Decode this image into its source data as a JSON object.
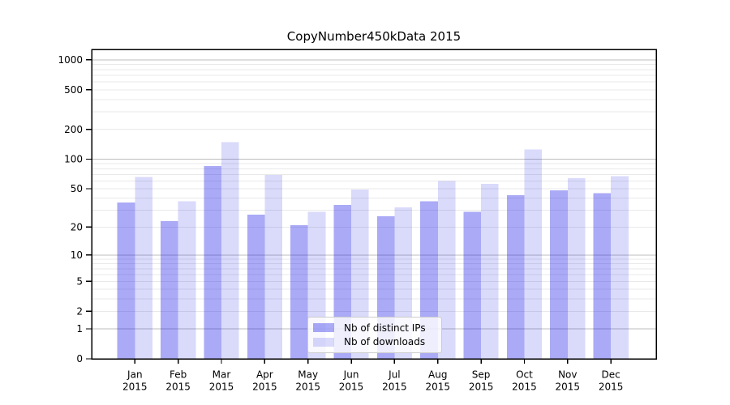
{
  "chart_data": {
    "type": "bar",
    "title": "CopyNumber450kData 2015",
    "categories": [
      "Jan",
      "Feb",
      "Mar",
      "Apr",
      "May",
      "Jun",
      "Jul",
      "Aug",
      "Sep",
      "Oct",
      "Nov",
      "Dec"
    ],
    "category_year": "2015",
    "series": [
      {
        "name": "Nb of distinct IPs",
        "color": "#1919e6",
        "alpha": 0.37,
        "values": [
          36,
          23,
          85,
          27,
          21,
          34,
          26,
          37,
          29,
          43,
          48,
          45
        ]
      },
      {
        "name": "Nb of downloads",
        "color": "#1919e6",
        "alpha": 0.16,
        "values": [
          66,
          37,
          148,
          69,
          29,
          49,
          32,
          60,
          56,
          125,
          64,
          67
        ]
      }
    ],
    "xlabel": "",
    "ylabel": "",
    "yscale": "log1p",
    "ylim": [
      0,
      1275
    ],
    "yticks": [
      0,
      1,
      2,
      5,
      10,
      20,
      50,
      100,
      200,
      500,
      1000
    ],
    "grid": {
      "on": true,
      "major_lines": [
        1,
        10,
        100,
        1000
      ],
      "minor_subs": [
        2,
        3,
        4,
        5,
        6,
        7,
        8,
        9
      ],
      "major_color": "#bdbdbd",
      "minor_color": "#e9e9e9"
    },
    "legend_position": "lower center"
  }
}
